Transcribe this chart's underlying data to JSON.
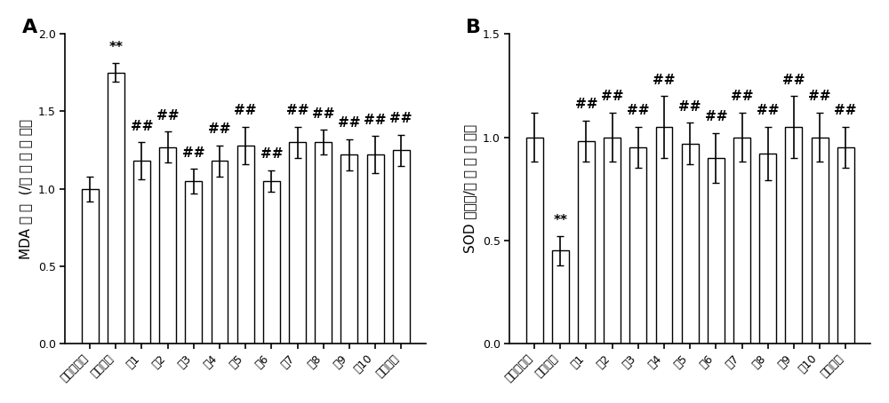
{
  "panel_A": {
    "title": "A",
    "ylabel": "MDA 水 平  (/空 白 对 照 组）",
    "categories": [
      "空白对照组",
      "东莨菪碱",
      "式1",
      "式2",
      "式3",
      "式4",
      "式5",
      "式6",
      "式7",
      "式8",
      "式9",
      "式10",
      "多奈哌齐"
    ],
    "values": [
      1.0,
      1.75,
      1.18,
      1.27,
      1.05,
      1.18,
      1.28,
      1.05,
      1.3,
      1.3,
      1.22,
      1.22,
      1.25
    ],
    "errors": [
      0.08,
      0.06,
      0.12,
      0.1,
      0.08,
      0.1,
      0.12,
      0.07,
      0.1,
      0.08,
      0.1,
      0.12,
      0.1
    ],
    "significance": [
      "",
      "**",
      "##",
      "##",
      "##",
      "##",
      "##",
      "##",
      "##",
      "##",
      "##",
      "##",
      "##"
    ],
    "ylim": [
      0.0,
      2.0
    ],
    "yticks": [
      0.0,
      0.5,
      1.0,
      1.5,
      2.0
    ]
  },
  "panel_B": {
    "title": "B",
    "ylabel": "SOD 活性（/空 白 对 照 组）",
    "categories": [
      "空白对照组",
      "东莨菪碱",
      "式1",
      "式2",
      "式3",
      "式4",
      "式5",
      "式6",
      "式7",
      "式8",
      "式9",
      "式10",
      "多奈哌齐"
    ],
    "values": [
      1.0,
      0.45,
      0.98,
      1.0,
      0.95,
      1.05,
      0.97,
      0.9,
      1.0,
      0.92,
      1.05,
      1.0,
      0.95
    ],
    "errors": [
      0.12,
      0.07,
      0.1,
      0.12,
      0.1,
      0.15,
      0.1,
      0.12,
      0.12,
      0.13,
      0.15,
      0.12,
      0.1
    ],
    "significance": [
      "",
      "**",
      "##",
      "##",
      "##",
      "##",
      "##",
      "##",
      "##",
      "##",
      "##",
      "##",
      "##"
    ],
    "ylim": [
      0.0,
      1.5
    ],
    "yticks": [
      0.0,
      0.5,
      1.0,
      1.5
    ]
  },
  "bar_color": "#ffffff",
  "bar_edgecolor": "#000000",
  "error_color": "#000000",
  "sig_color": "#000000",
  "background_color": "#ffffff",
  "bar_width": 0.65,
  "fontsize_label": 11,
  "fontsize_tick": 9,
  "fontsize_sig": 11,
  "fontsize_panel": 16
}
